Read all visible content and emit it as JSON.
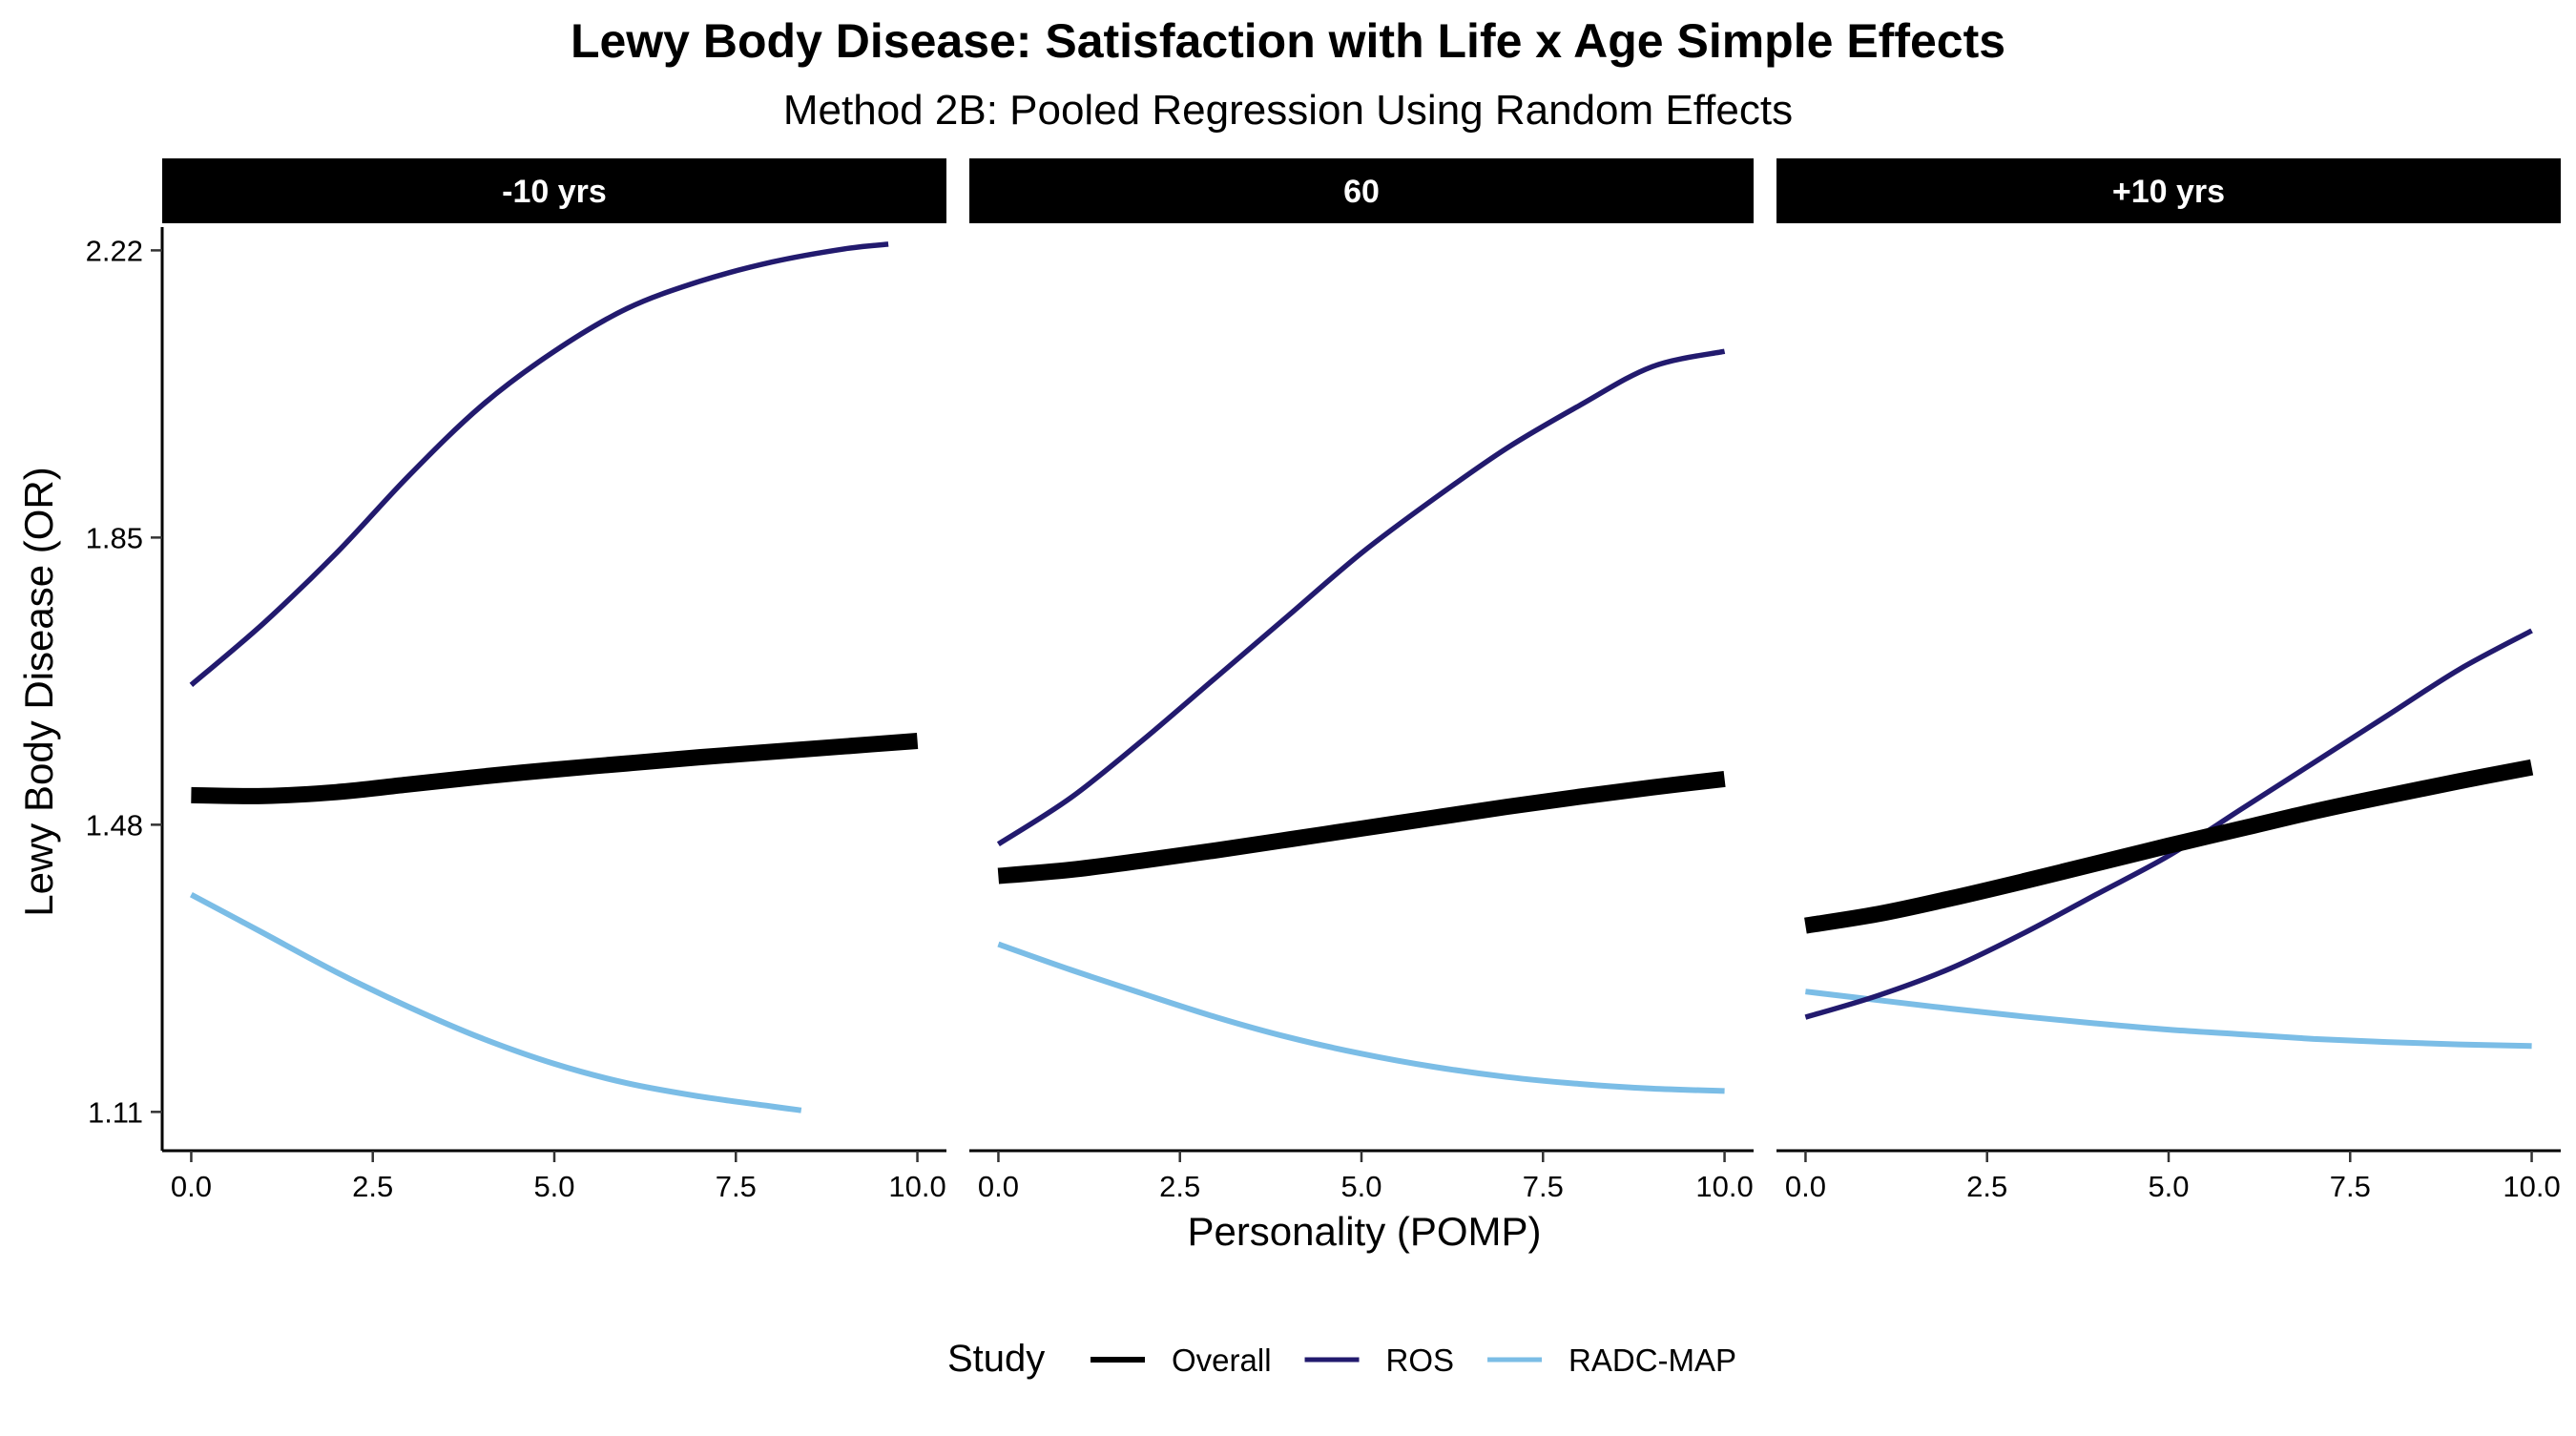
{
  "chart_data": {
    "type": "line",
    "title": "Lewy Body Disease: Satisfaction with Life x Age Simple Effects",
    "subtitle": "Method 2B: Pooled Regression Using Random Effects",
    "xlabel": "Personality (POMP)",
    "ylabel": "Lewy Body Disease (OR)",
    "xlim": [
      -0.4,
      10.4
    ],
    "ylim": [
      1.06,
      2.25
    ],
    "x_ticks": [
      0,
      2.5,
      5,
      7.5,
      10
    ],
    "x_tick_labels": [
      "0.0",
      "2.5",
      "5.0",
      "7.5",
      "10.0"
    ],
    "y_ticks": [
      1.11,
      1.48,
      1.85,
      2.22
    ],
    "y_tick_labels": [
      "1.11",
      "1.48",
      "1.85",
      "2.22"
    ],
    "grid": false,
    "legend": {
      "title": "Study",
      "position": "bottom",
      "entries": [
        {
          "name": "Overall",
          "color": "#000000"
        },
        {
          "name": "ROS",
          "color": "#221a6e"
        },
        {
          "name": "RADC-MAP",
          "color": "#7bbde6"
        }
      ]
    },
    "panels": [
      {
        "label": "-10 yrs",
        "series": [
          {
            "name": "Overall",
            "color": "#000000",
            "x": [
              0,
              1,
              2,
              3,
              4,
              5,
              6,
              7,
              8,
              9,
              10
            ],
            "y": [
              1.518,
              1.517,
              1.522,
              1.532,
              1.542,
              1.551,
              1.559,
              1.567,
              1.574,
              1.581,
              1.588
            ]
          },
          {
            "name": "ROS",
            "color": "#221a6e",
            "x": [
              0,
              1,
              2,
              3,
              4,
              5,
              6,
              7,
              8,
              9,
              9.6
            ],
            "y": [
              1.66,
              1.74,
              1.83,
              1.93,
              2.02,
              2.09,
              2.145,
              2.18,
              2.205,
              2.222,
              2.228
            ]
          },
          {
            "name": "RADC-MAP",
            "color": "#7bbde6",
            "x": [
              0,
              1,
              2,
              3,
              4,
              5,
              6,
              7,
              8,
              8.4
            ],
            "y": [
              1.39,
              1.34,
              1.29,
              1.245,
              1.205,
              1.172,
              1.147,
              1.13,
              1.117,
              1.112
            ]
          }
        ]
      },
      {
        "label": "60",
        "series": [
          {
            "name": "Overall",
            "color": "#000000",
            "x": [
              0,
              1,
              2,
              3,
              4,
              5,
              6,
              7,
              8,
              9,
              10
            ],
            "y": [
              1.414,
              1.422,
              1.434,
              1.447,
              1.461,
              1.475,
              1.489,
              1.503,
              1.516,
              1.528,
              1.539
            ]
          },
          {
            "name": "ROS",
            "color": "#221a6e",
            "x": [
              0,
              1,
              2,
              3,
              4,
              5,
              6,
              7,
              8,
              9,
              10
            ],
            "y": [
              1.455,
              1.515,
              1.59,
              1.67,
              1.75,
              1.83,
              1.9,
              1.965,
              2.02,
              2.07,
              2.09
            ]
          },
          {
            "name": "RADC-MAP",
            "color": "#7bbde6",
            "x": [
              0,
              1,
              2,
              3,
              4,
              5,
              6,
              7,
              8,
              9,
              10
            ],
            "y": [
              1.326,
              1.293,
              1.262,
              1.232,
              1.206,
              1.185,
              1.168,
              1.155,
              1.146,
              1.14,
              1.137
            ]
          }
        ]
      },
      {
        "label": "+10 yrs",
        "series": [
          {
            "name": "Overall",
            "color": "#000000",
            "x": [
              0,
              1,
              2,
              3,
              4,
              5,
              6,
              7,
              8,
              9,
              10
            ],
            "y": [
              1.35,
              1.365,
              1.385,
              1.407,
              1.43,
              1.453,
              1.475,
              1.497,
              1.517,
              1.536,
              1.554
            ]
          },
          {
            "name": "ROS",
            "color": "#221a6e",
            "x": [
              0,
              1,
              2,
              3,
              4,
              5,
              6,
              7,
              8,
              9,
              10
            ],
            "y": [
              1.232,
              1.26,
              1.295,
              1.34,
              1.39,
              1.44,
              1.5,
              1.56,
              1.62,
              1.68,
              1.73
            ]
          },
          {
            "name": "RADC-MAP",
            "color": "#7bbde6",
            "x": [
              0,
              1,
              2,
              3,
              4,
              5,
              6,
              7,
              8,
              9,
              10
            ],
            "y": [
              1.265,
              1.254,
              1.243,
              1.233,
              1.224,
              1.216,
              1.21,
              1.204,
              1.2,
              1.197,
              1.195
            ]
          }
        ]
      }
    ]
  }
}
